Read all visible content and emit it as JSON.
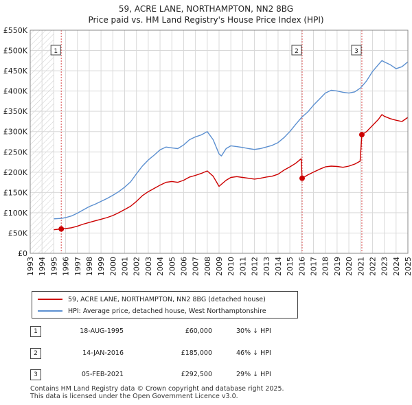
{
  "title": "59, ACRE LANE, NORTHAMPTON, NN2 8BG",
  "subtitle": "Price paid vs. HM Land Registry's House Price Index (HPI)",
  "chart_data": {
    "type": "line",
    "ylim": [
      0,
      550000
    ],
    "xlim": [
      1993,
      2025
    ],
    "y_ticks": [
      {
        "value": 0,
        "label": "£0"
      },
      {
        "value": 50000,
        "label": "£50K"
      },
      {
        "value": 100000,
        "label": "£100K"
      },
      {
        "value": 150000,
        "label": "£150K"
      },
      {
        "value": 200000,
        "label": "£200K"
      },
      {
        "value": 250000,
        "label": "£250K"
      },
      {
        "value": 300000,
        "label": "£300K"
      },
      {
        "value": 350000,
        "label": "£350K"
      },
      {
        "value": 400000,
        "label": "£400K"
      },
      {
        "value": 450000,
        "label": "£450K"
      },
      {
        "value": 500000,
        "label": "£500K"
      },
      {
        "value": 550000,
        "label": "£550K"
      }
    ],
    "x_ticks": [
      "1993",
      "1994",
      "1995",
      "1996",
      "1997",
      "1998",
      "1999",
      "2000",
      "2001",
      "2002",
      "2003",
      "2004",
      "2005",
      "2006",
      "2007",
      "2008",
      "2009",
      "2010",
      "2011",
      "2012",
      "2013",
      "2014",
      "2015",
      "2016",
      "2017",
      "2018",
      "2019",
      "2020",
      "2021",
      "2022",
      "2023",
      "2024",
      "2025"
    ],
    "hatch_until": 1995.0,
    "series": [
      {
        "name": "59, ACRE LANE, NORTHAMPTON, NN2 8BG (detached house)",
        "color": "#cc0000",
        "x": [
          1995.0,
          1995.63,
          1996.0,
          1996.5,
          1997.0,
          1997.5,
          1998.0,
          1998.5,
          1999.0,
          1999.5,
          2000.0,
          2000.5,
          2001.0,
          2001.5,
          2002.0,
          2002.5,
          2003.0,
          2003.5,
          2004.0,
          2004.5,
          2005.0,
          2005.5,
          2006.0,
          2006.5,
          2007.0,
          2007.5,
          2008.0,
          2008.5,
          2009.0,
          2009.2,
          2009.6,
          2010.0,
          2010.5,
          2011.0,
          2011.5,
          2012.0,
          2012.5,
          2013.0,
          2013.5,
          2014.0,
          2014.5,
          2015.0,
          2015.5,
          2015.95,
          2016.04,
          2016.5,
          2017.0,
          2017.5,
          2018.0,
          2018.5,
          2019.0,
          2019.5,
          2020.0,
          2020.5,
          2020.95,
          2021.1,
          2021.5,
          2022.0,
          2022.5,
          2022.8,
          2023.0,
          2023.5,
          2024.0,
          2024.5,
          2025.0
        ],
        "values": [
          58000,
          60000,
          61000,
          63000,
          67000,
          72000,
          76000,
          80000,
          84000,
          88000,
          93000,
          100000,
          108000,
          116000,
          128000,
          142000,
          152000,
          160000,
          168000,
          175000,
          177000,
          175000,
          180000,
          188000,
          192000,
          197000,
          203000,
          190000,
          165000,
          170000,
          180000,
          187000,
          189000,
          187000,
          185000,
          183000,
          185000,
          188000,
          190000,
          195000,
          205000,
          213000,
          222000,
          233000,
          185000,
          193000,
          200000,
          207000,
          213000,
          215000,
          214000,
          212000,
          215000,
          220000,
          227000,
          292500,
          300000,
          315000,
          330000,
          342000,
          338000,
          332000,
          328000,
          325000,
          335000
        ]
      },
      {
        "name": "HPI: Average price, detached house, West Northamptonshire",
        "color": "#5b8fd0",
        "x": [
          1995.0,
          1995.63,
          1996.0,
          1996.5,
          1997.0,
          1997.5,
          1998.0,
          1998.5,
          1999.0,
          1999.5,
          2000.0,
          2000.5,
          2001.0,
          2001.5,
          2002.0,
          2002.5,
          2003.0,
          2003.5,
          2004.0,
          2004.5,
          2005.0,
          2005.5,
          2006.0,
          2006.5,
          2007.0,
          2007.5,
          2008.0,
          2008.5,
          2009.0,
          2009.2,
          2009.6,
          2010.0,
          2010.5,
          2011.0,
          2011.5,
          2012.0,
          2012.5,
          2013.0,
          2013.5,
          2014.0,
          2014.5,
          2015.0,
          2015.5,
          2016.0,
          2016.5,
          2017.0,
          2017.5,
          2018.0,
          2018.5,
          2019.0,
          2019.5,
          2020.0,
          2020.5,
          2021.0,
          2021.5,
          2022.0,
          2022.5,
          2022.8,
          2023.0,
          2023.5,
          2024.0,
          2024.5,
          2025.0
        ],
        "values": [
          85000,
          86000,
          88000,
          92000,
          99000,
          107000,
          115000,
          121000,
          128000,
          135000,
          143000,
          152000,
          163000,
          176000,
          196000,
          215000,
          230000,
          242000,
          255000,
          262000,
          260000,
          258000,
          267000,
          280000,
          287000,
          292000,
          300000,
          280000,
          245000,
          240000,
          258000,
          265000,
          263000,
          261000,
          258000,
          256000,
          258000,
          262000,
          266000,
          273000,
          285000,
          300000,
          318000,
          335000,
          348000,
          365000,
          380000,
          395000,
          402000,
          400000,
          397000,
          395000,
          398000,
          408000,
          425000,
          448000,
          465000,
          475000,
          472000,
          465000,
          455000,
          460000,
          472000
        ]
      }
    ],
    "sales": [
      {
        "num": "1",
        "x": 1995.63,
        "value": 60000
      },
      {
        "num": "2",
        "x": 2016.04,
        "value": 185000
      },
      {
        "num": "3",
        "x": 2021.1,
        "value": 292500
      }
    ]
  },
  "legend": {
    "item1": "59, ACRE LANE, NORTHAMPTON, NN2 8BG (detached house)",
    "item2": "HPI: Average price, detached house, West Northamptonshire"
  },
  "transactions": [
    {
      "num": "1",
      "date": "18-AUG-1995",
      "price": "£60,000",
      "hpi": "30% ↓ HPI"
    },
    {
      "num": "2",
      "date": "14-JAN-2016",
      "price": "£185,000",
      "hpi": "46% ↓ HPI"
    },
    {
      "num": "3",
      "date": "05-FEB-2021",
      "price": "£292,500",
      "hpi": "29% ↓ HPI"
    }
  ],
  "footer": {
    "line1": "Contains HM Land Registry data © Crown copyright and database right 2025.",
    "line2": "This data is licensed under the Open Government Licence v3.0."
  },
  "colors": {
    "price": "#cc0000",
    "hpi": "#5b8fd0",
    "grid": "#d9d9d9"
  }
}
